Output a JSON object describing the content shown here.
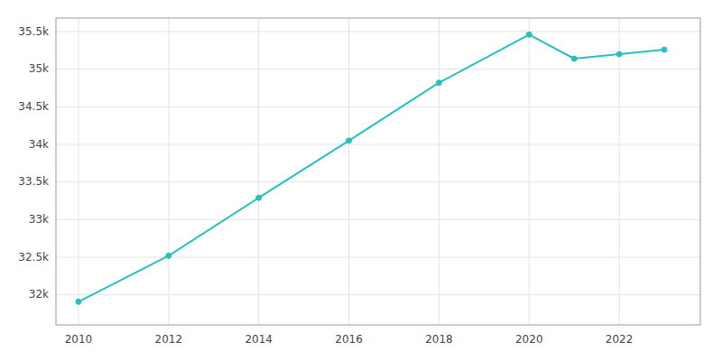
{
  "chart_data": {
    "type": "line",
    "x": [
      2010,
      2012,
      2014,
      2016,
      2018,
      2020,
      2021,
      2022,
      2023
    ],
    "values": [
      31908,
      32520,
      33290,
      34050,
      34820,
      35460,
      35140,
      35200,
      35260
    ],
    "color": "#2abfbf",
    "marker": "circle",
    "xlim": [
      2009.5,
      2023.8
    ],
    "ylim": [
      31600,
      35680
    ],
    "xticks": [
      2010,
      2012,
      2014,
      2016,
      2018,
      2020,
      2022
    ],
    "yticks": [
      {
        "value": 32000,
        "label": "32k"
      },
      {
        "value": 32500,
        "label": "32.5k"
      },
      {
        "value": 33000,
        "label": "33k"
      },
      {
        "value": 33500,
        "label": "33.5k"
      },
      {
        "value": 34000,
        "label": "34k"
      },
      {
        "value": 34500,
        "label": "34.5k"
      },
      {
        "value": 35000,
        "label": "35k"
      },
      {
        "value": 35500,
        "label": "35.5k"
      }
    ],
    "grid": true
  }
}
